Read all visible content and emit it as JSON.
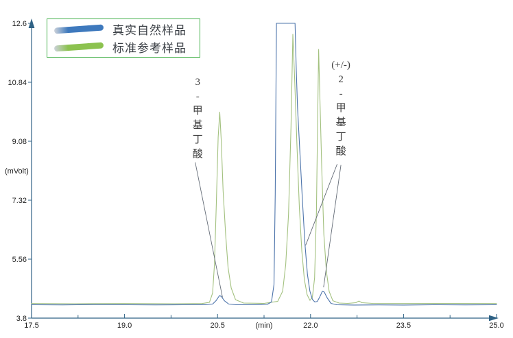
{
  "chart_data": {
    "type": "line",
    "title": "",
    "xlabel": "(min)",
    "ylabel": "(mVolt)",
    "x_axis": {
      "range": [
        17.5,
        25.0
      ],
      "tick_values": [
        17.5,
        19.0,
        20.5,
        22.0,
        23.5,
        25.0
      ],
      "tick_labels": [
        "17.5",
        "19.0",
        "20.5",
        "22.0",
        "23.5",
        "25.0"
      ],
      "minor_tick_values": [
        18.25,
        19.75,
        21.25,
        22.75,
        24.25
      ],
      "unit_label": "(min)",
      "unit_label_at": 21.25
    },
    "y_axis": {
      "range": [
        3.8,
        12.6
      ],
      "tick_values": [
        3.8,
        5.56,
        7.32,
        9.08,
        10.84,
        12.6
      ],
      "tick_labels": [
        "3.8",
        "5.56",
        "7.32",
        "9.08",
        "10.84",
        "12.6"
      ],
      "unit_label": "(mVolt)",
      "unit_label_at": 8.2
    },
    "grid": false,
    "legend": {
      "position": "top-left",
      "border_color": "#43b049",
      "entries": [
        {
          "label": "真实自然样品",
          "color": "#3e79bd"
        },
        {
          "label": "标准参考样品",
          "color": "#8cc24f"
        }
      ]
    },
    "series": [
      {
        "name": "真实自然样品",
        "color": "#4d74ab",
        "points": [
          [
            17.5,
            4.2
          ],
          [
            18.0,
            4.195
          ],
          [
            18.5,
            4.205
          ],
          [
            19.0,
            4.2
          ],
          [
            19.5,
            4.195
          ],
          [
            20.0,
            4.2
          ],
          [
            20.3,
            4.2
          ],
          [
            20.42,
            4.22
          ],
          [
            20.48,
            4.33
          ],
          [
            20.53,
            4.47
          ],
          [
            20.56,
            4.45
          ],
          [
            20.61,
            4.32
          ],
          [
            20.68,
            4.22
          ],
          [
            20.8,
            4.2
          ],
          [
            21.1,
            4.2
          ],
          [
            21.3,
            4.21
          ],
          [
            21.37,
            4.28
          ],
          [
            21.41,
            4.8
          ],
          [
            21.43,
            7.5
          ],
          [
            21.45,
            12.6
          ],
          [
            21.75,
            12.6
          ],
          [
            21.77,
            11.2
          ],
          [
            21.79,
            10.1
          ],
          [
            21.83,
            8.7
          ],
          [
            21.87,
            7.3
          ],
          [
            21.91,
            6.0
          ],
          [
            21.95,
            5.1
          ],
          [
            21.99,
            4.6
          ],
          [
            22.03,
            4.36
          ],
          [
            22.07,
            4.28
          ],
          [
            22.11,
            4.3
          ],
          [
            22.15,
            4.44
          ],
          [
            22.19,
            4.6
          ],
          [
            22.22,
            4.58
          ],
          [
            22.27,
            4.4
          ],
          [
            22.33,
            4.24
          ],
          [
            22.42,
            4.2
          ],
          [
            22.7,
            4.19
          ],
          [
            23.1,
            4.195
          ],
          [
            23.5,
            4.19
          ],
          [
            24.0,
            4.2
          ],
          [
            24.5,
            4.195
          ],
          [
            25.0,
            4.2
          ]
        ]
      },
      {
        "name": "标准参考样品",
        "color": "#a3c17f",
        "points": [
          [
            17.5,
            4.235
          ],
          [
            18.2,
            4.23
          ],
          [
            19.0,
            4.235
          ],
          [
            19.8,
            4.23
          ],
          [
            20.25,
            4.235
          ],
          [
            20.37,
            4.27
          ],
          [
            20.42,
            4.55
          ],
          [
            20.45,
            5.4
          ],
          [
            20.48,
            7.2
          ],
          [
            20.51,
            9.2
          ],
          [
            20.535,
            9.95
          ],
          [
            20.56,
            9.1
          ],
          [
            20.59,
            7.6
          ],
          [
            20.63,
            6.3
          ],
          [
            20.67,
            5.3
          ],
          [
            20.72,
            4.7
          ],
          [
            20.79,
            4.35
          ],
          [
            20.92,
            4.25
          ],
          [
            21.25,
            4.24
          ],
          [
            21.47,
            4.3
          ],
          [
            21.55,
            4.6
          ],
          [
            21.6,
            5.4
          ],
          [
            21.645,
            6.9
          ],
          [
            21.685,
            9.5
          ],
          [
            21.715,
            12.27
          ],
          [
            21.745,
            10.9
          ],
          [
            21.78,
            9.0
          ],
          [
            21.82,
            7.1
          ],
          [
            21.86,
            5.8
          ],
          [
            21.9,
            4.95
          ],
          [
            21.945,
            4.5
          ],
          [
            21.99,
            4.33
          ],
          [
            22.03,
            4.42
          ],
          [
            22.065,
            5.0
          ],
          [
            22.095,
            7.0
          ],
          [
            22.115,
            9.8
          ],
          [
            22.13,
            11.82
          ],
          [
            22.15,
            10.4
          ],
          [
            22.18,
            8.3
          ],
          [
            22.215,
            6.3
          ],
          [
            22.255,
            5.2
          ],
          [
            22.3,
            4.6
          ],
          [
            22.36,
            4.32
          ],
          [
            22.46,
            4.25
          ],
          [
            22.6,
            4.24
          ],
          [
            22.73,
            4.26
          ],
          [
            22.78,
            4.31
          ],
          [
            22.83,
            4.26
          ],
          [
            23.0,
            4.24
          ],
          [
            23.6,
            4.235
          ],
          [
            24.3,
            4.24
          ],
          [
            25.0,
            4.235
          ]
        ]
      }
    ],
    "annotations": [
      {
        "text": "3-甲基丁酸",
        "chars": [
          "3",
          "-",
          "甲",
          "基",
          "丁",
          "酸"
        ],
        "x_min": 20.18,
        "top_mv": 11.05,
        "pointer_lines": [
          {
            "x1": 20.14,
            "y1": 8.45,
            "x2": 20.58,
            "y2": 4.42
          }
        ]
      },
      {
        "text": "(+/-)2-甲基丁酸",
        "chars": [
          "(+/-)",
          "2",
          "-",
          "甲",
          "基",
          "丁",
          "酸"
        ],
        "x_min": 22.49,
        "top_mv": 11.55,
        "pointer_lines": [
          {
            "x1": 22.43,
            "y1": 8.4,
            "x2": 21.92,
            "y2": 5.97
          },
          {
            "x1": 22.49,
            "y1": 8.37,
            "x2": 22.21,
            "y2": 4.72
          }
        ]
      }
    ],
    "colors": {
      "axis": "#2f6285",
      "tick_label": "#1c1c1c",
      "annotation_line": "#636b76",
      "annotation_text": "#3e3e3e"
    }
  }
}
